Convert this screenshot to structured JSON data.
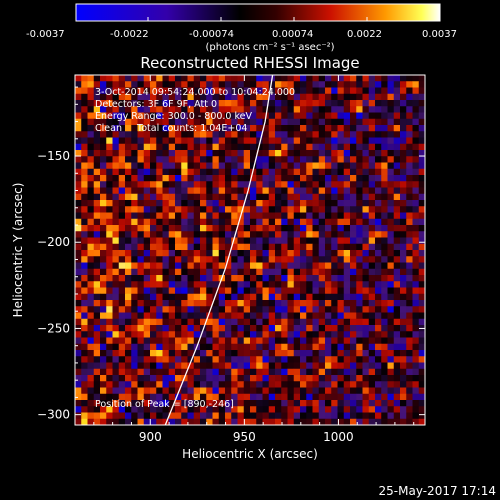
{
  "colorbar": {
    "ticks": [
      "-0.0037",
      "-0.0022",
      "-0.00074",
      "0.00074",
      "0.0022",
      "0.0037"
    ],
    "units": "(photons cm⁻² s⁻¹ asec⁻²)",
    "min": -0.0037,
    "max": 0.0037
  },
  "title": "Reconstructed RHESSI Image",
  "info": {
    "line1": "3-Oct-2014 09:54:24.000 to 10:04:24.000",
    "line2": "Detectors: 3F 6F 9F, Att 0",
    "line3": "Energy Range: 300.0 - 800.0 keV",
    "line4": "Clean     Total counts: 1.04E+04",
    "peak": "Position of Peak = [890,-246]"
  },
  "footer": {
    "timestamp": "25-May-2017 17:14"
  },
  "chart_data": {
    "type": "heatmap",
    "title": "Reconstructed RHESSI Image",
    "xlabel": "Heliocentric X (arcsec)",
    "ylabel": "Heliocentric Y (arcsec)",
    "xlim": [
      860,
      1046
    ],
    "ylim": [
      -306,
      -103
    ],
    "xticks": [
      {
        "value": 900,
        "label": "900"
      },
      {
        "value": 950,
        "label": "950"
      },
      {
        "value": 1000,
        "label": "1000"
      }
    ],
    "yticks": [
      {
        "value": -150,
        "label": "−150"
      },
      {
        "value": -200,
        "label": "−200"
      },
      {
        "value": -250,
        "label": "−250"
      },
      {
        "value": -300,
        "label": "−300"
      }
    ],
    "limb_curve": [
      [
        908,
        -306
      ],
      [
        925,
        -260
      ],
      [
        940,
        -215
      ],
      [
        952,
        -170
      ],
      [
        961,
        -130
      ],
      [
        965,
        -103
      ]
    ],
    "colormap": [
      "#0000ff",
      "#000000",
      "#ff0000",
      "#ffff00",
      "#ffffff"
    ]
  }
}
